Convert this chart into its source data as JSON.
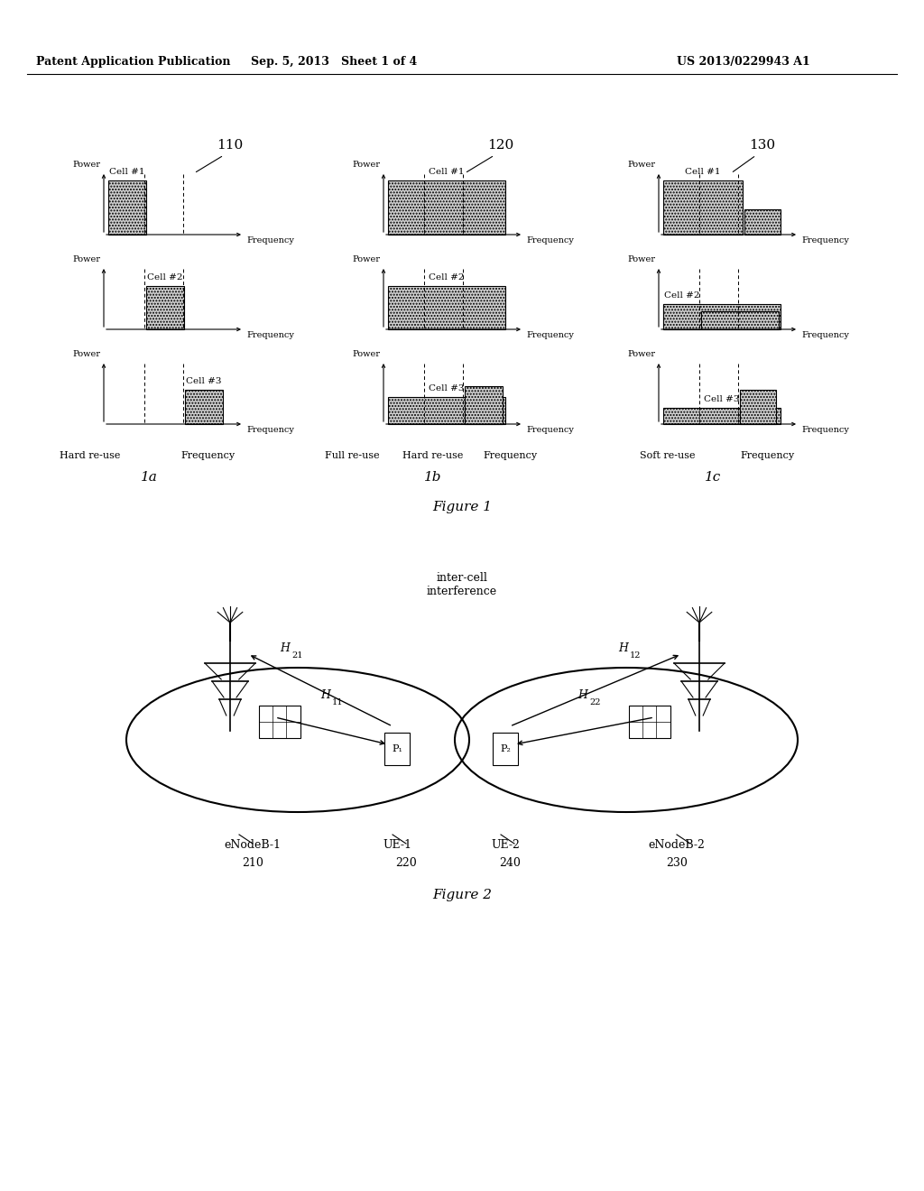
{
  "header_left": "Patent Application Publication",
  "header_mid": "Sep. 5, 2013   Sheet 1 of 4",
  "header_right": "US 2013/0229943 A1",
  "bg_color": "#ffffff",
  "hatch_pattern": ".....",
  "bar_facecolor": "#d0d0d0",
  "line_color": "#000000",
  "power_label": "Power",
  "freq_label": "Frequency",
  "group_nums": [
    "110",
    "120",
    "130"
  ],
  "cell_labels": [
    "Cell #1",
    "Cell #2",
    "Cell #3"
  ],
  "sub_labels": [
    "1a",
    "1b",
    "1c"
  ],
  "fig1_caption": "Figure 1",
  "fig2_caption": "Figure 2",
  "bottom_1a": [
    "Hard re-use",
    "Frequency"
  ],
  "bottom_1b": [
    "Full re-use",
    "Hard re-use",
    "Frequency"
  ],
  "bottom_1c": [
    "Soft re-use",
    "Frequency"
  ],
  "interference_label": "inter-cell\ninterference",
  "eNodeB1_label": "eNodeB-1",
  "eNodeB1_num": "210",
  "UE1_label": "UE-1",
  "UE1_num": "220",
  "UE2_label": "UE-2",
  "UE2_num": "240",
  "eNodeB2_label": "eNodeB-2",
  "eNodeB2_num": "230"
}
